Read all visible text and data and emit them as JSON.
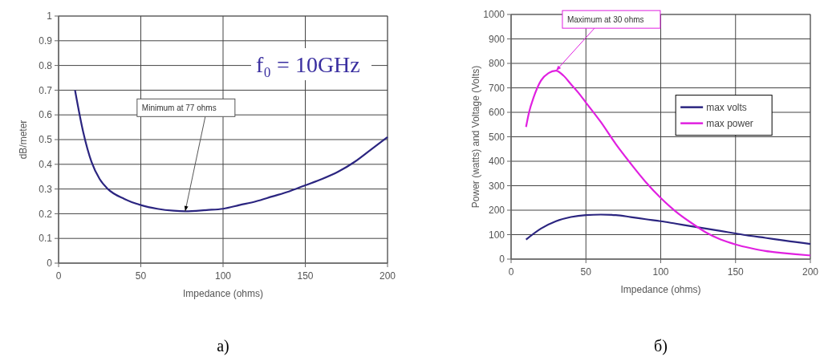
{
  "chart_data": [
    {
      "type": "line",
      "xlabel": "Impedance (ohms)",
      "ylabel": "dB/meter",
      "xlim": [
        0,
        200
      ],
      "xticks": [
        0,
        50,
        100,
        150,
        200
      ],
      "ylim": [
        0,
        1
      ],
      "yticks": [
        0,
        {
          "value": 0.1,
          "label": "0.1"
        },
        {
          "value": 0.2,
          "label": "0.2"
        },
        {
          "value": 0.3,
          "label": "0.3"
        },
        {
          "value": 0.4,
          "label": "0.4"
        },
        {
          "value": 0.5,
          "label": "0.5"
        },
        {
          "value": 0.6,
          "label": "0.6"
        },
        {
          "value": 0.7,
          "label": "0.7"
        },
        {
          "value": 0.8,
          "label": "0.8"
        },
        {
          "value": 0.9,
          "label": "0.9"
        },
        1
      ],
      "grid": true,
      "legend": false,
      "marker": "none",
      "line_style": "solid",
      "x": [
        10,
        15,
        20,
        25,
        30,
        40,
        50,
        60,
        70,
        77,
        90,
        100,
        110,
        120,
        130,
        140,
        150,
        160,
        170,
        180,
        190,
        200
      ],
      "series": [
        {
          "color": "#2b2580",
          "values": [
            0.7,
            0.53,
            0.41,
            0.34,
            0.3,
            0.26,
            0.235,
            0.22,
            0.212,
            0.21,
            0.215,
            0.22,
            0.235,
            0.25,
            0.27,
            0.29,
            0.315,
            0.34,
            0.37,
            0.41,
            0.46,
            0.51
          ]
        }
      ],
      "annotations": [
        {
          "text": "Minimum at 77 ohms",
          "x": 77,
          "y": 0.21
        },
        "f₀ = 10GHz",
        "а)"
      ]
    },
    {
      "type": "line",
      "xlabel": "Impedance (ohms)",
      "ylabel": "Power (watts) and Voltage (Volts)",
      "xlim": [
        0,
        200
      ],
      "xticks": [
        0,
        50,
        100,
        150,
        200
      ],
      "ylim": [
        0,
        1000
      ],
      "yticks": [
        0,
        100,
        200,
        300,
        400,
        500,
        600,
        700,
        800,
        900,
        1000
      ],
      "grid": true,
      "legend": "right",
      "marker": "none",
      "line_style": "solid",
      "series": [
        {
          "name": "max volts",
          "color": "#2b2580",
          "x": [
            10,
            20,
            30,
            40,
            50,
            60,
            70,
            80,
            90,
            100,
            110,
            120,
            130,
            140,
            150,
            160,
            170,
            180,
            190,
            200
          ],
          "values": [
            80,
            125,
            155,
            172,
            180,
            182,
            180,
            172,
            163,
            155,
            145,
            135,
            125,
            115,
            105,
            95,
            87,
            78,
            70,
            62
          ]
        },
        {
          "name": "max power",
          "color": "#e020e0",
          "x": [
            10,
            12,
            15,
            20,
            25,
            30,
            35,
            40,
            45,
            50,
            60,
            70,
            80,
            90,
            100,
            110,
            120,
            130,
            140,
            150,
            160,
            170,
            180,
            190,
            200
          ],
          "values": [
            540,
            600,
            660,
            730,
            760,
            770,
            750,
            715,
            680,
            640,
            560,
            470,
            390,
            315,
            250,
            195,
            150,
            110,
            80,
            60,
            45,
            33,
            26,
            20,
            15
          ]
        }
      ],
      "annotations": [
        {
          "text": "Maximum at 30 ohms",
          "x": 30,
          "y": 770
        },
        "б)"
      ]
    }
  ]
}
